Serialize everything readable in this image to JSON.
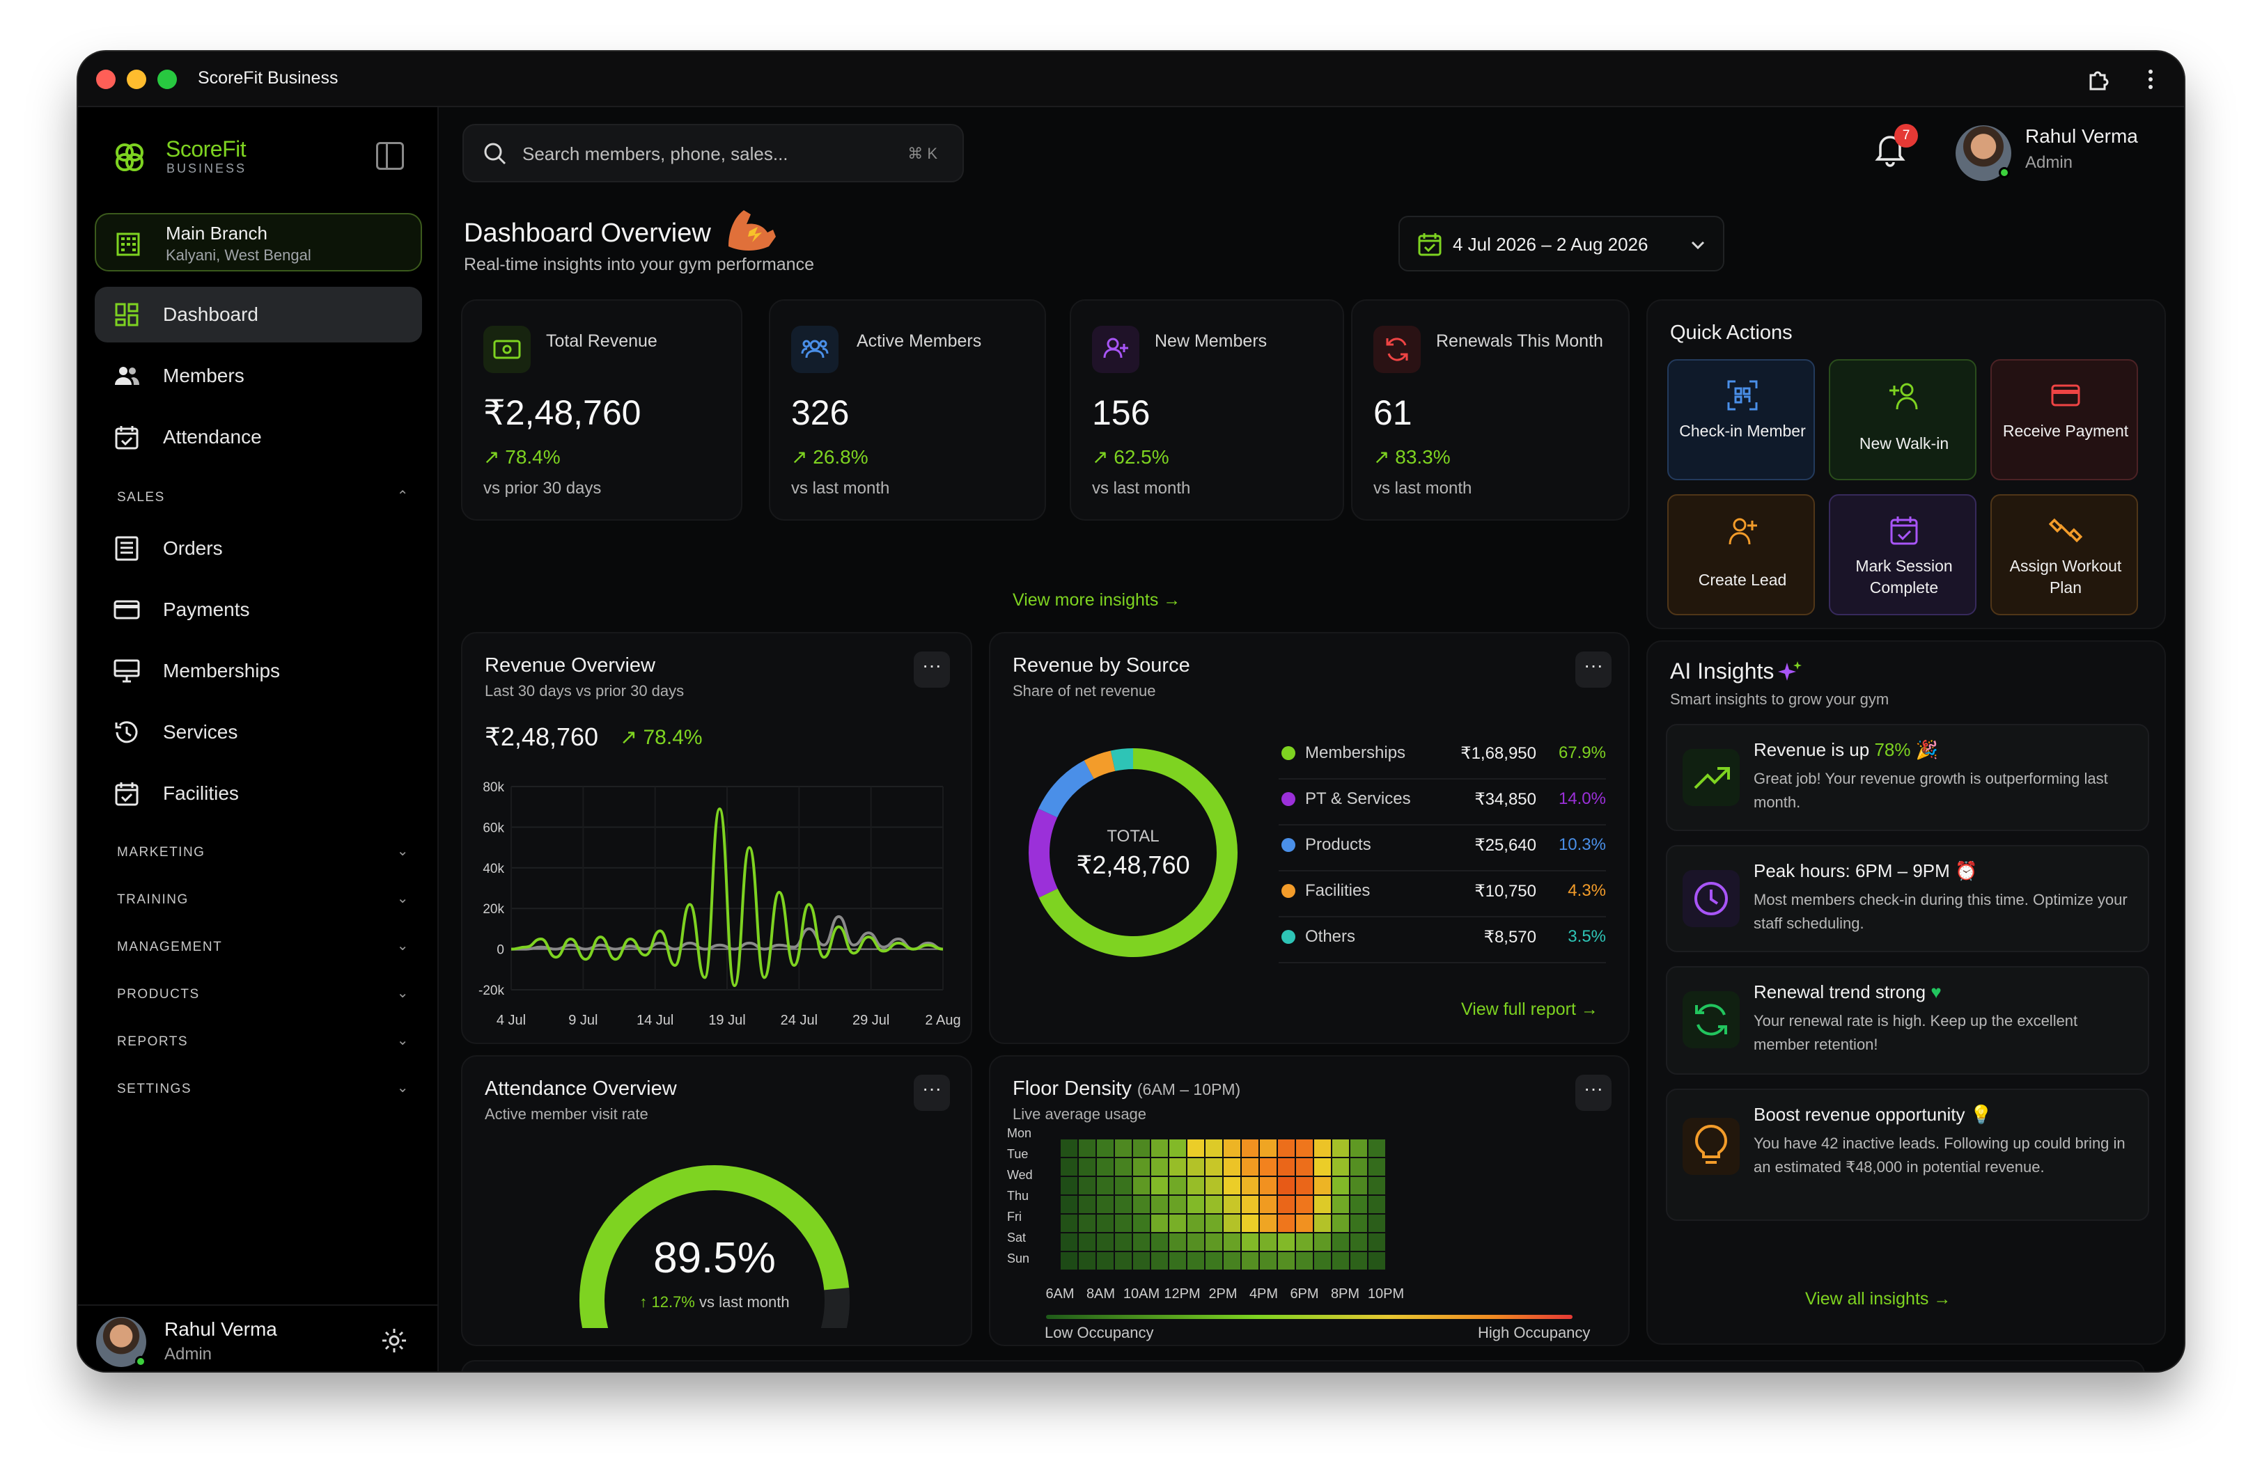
{
  "window": {
    "title": "ScoreFit Business"
  },
  "brand": {
    "name": "ScoreFit",
    "sub": "BUSINESS"
  },
  "branch": {
    "name": "Main Branch",
    "location": "Kalyani, West Bengal"
  },
  "nav": {
    "main": [
      {
        "label": "Dashboard"
      },
      {
        "label": "Members"
      },
      {
        "label": "Attendance"
      }
    ],
    "sales_header": "SALES",
    "sales": [
      {
        "label": "Orders"
      },
      {
        "label": "Payments"
      },
      {
        "label": "Memberships"
      },
      {
        "label": "Services"
      },
      {
        "label": "Facilities"
      }
    ],
    "sections": [
      "MARKETING",
      "TRAINING",
      "MANAGEMENT",
      "PRODUCTS",
      "REPORTS",
      "SETTINGS"
    ]
  },
  "user": {
    "name": "Rahul Verma",
    "role": "Admin"
  },
  "search": {
    "placeholder": "Search members, phone, sales...",
    "shortcut": "⌘ K"
  },
  "notifications": {
    "count": "7"
  },
  "page": {
    "title": "Dashboard Overview",
    "subtitle": "Real-time insights into your gym performance",
    "date_range": "4 Jul 2026 – 2 Aug 2026"
  },
  "stats": [
    {
      "label": "Total Revenue",
      "value": "₹2,48,760",
      "change": "78.4%",
      "compare": "vs prior 30 days"
    },
    {
      "label": "Active Members",
      "value": "326",
      "change": "26.8%",
      "compare": "vs last month"
    },
    {
      "label": "New Members",
      "value": "156",
      "change": "62.5%",
      "compare": "vs last month"
    },
    {
      "label": "Renewals This Month",
      "value": "61",
      "change": "83.3%",
      "compare": "vs last month"
    }
  ],
  "view_more_insights": "View more insights →",
  "revenue_overview": {
    "title": "Revenue Overview",
    "subtitle": "Last 30 days vs prior 30 days",
    "total": "₹2,48,760",
    "change": "78.4%"
  },
  "revenue_by_source": {
    "title": "Revenue by Source",
    "subtitle": "Share of net revenue",
    "total_label": "TOTAL",
    "total": "₹2,48,760",
    "view_full": "View full report →"
  },
  "attendance": {
    "title": "Attendance Overview",
    "subtitle": "Active member visit rate",
    "value_text": "89.5%",
    "value": 89.5,
    "change": "↑ 12.7%",
    "compare": "vs last month"
  },
  "floor_density": {
    "title": "Floor Density",
    "title_note": "(6AM – 10PM)",
    "subtitle": "Live average usage",
    "low": "Low Occupancy",
    "high": "High Occupancy"
  },
  "quick_actions": {
    "title": "Quick Actions",
    "items": [
      {
        "label": "Check-in Member",
        "icon": "qr-scan-icon",
        "color": "#4a8fe8"
      },
      {
        "label": "New Walk-in",
        "icon": "user-plus-icon",
        "color": "#7ed321"
      },
      {
        "label": "Receive Payment",
        "icon": "credit-card-icon",
        "color": "#ef4444"
      },
      {
        "label": "Create Lead",
        "icon": "user-add-icon",
        "color": "#f39c2a"
      },
      {
        "label": "Mark Session Complete",
        "icon": "calendar-check-icon",
        "color": "#a855f7"
      },
      {
        "label": "Assign Workout Plan",
        "icon": "dumbbell-icon",
        "color": "#f39c2a"
      }
    ]
  },
  "ai_insights": {
    "title": "AI Insights",
    "subtitle": "Smart insights to grow your gym",
    "items": [
      {
        "title": "Revenue is up",
        "highlight": "78%",
        "desc": "Great job! Your revenue growth is outperforming last month.",
        "color": "#7ed321",
        "icon": "trend-up-icon"
      },
      {
        "title": "Peak hours: 6PM – 9PM",
        "desc": "Most members check-in during this time. Optimize your staff scheduling.",
        "color": "#a855f7",
        "icon": "clock-icon"
      },
      {
        "title": "Renewal trend strong",
        "desc": "Your renewal rate is high. Keep up the excellent member retention!",
        "color": "#22c55e",
        "icon": "refresh-icon"
      },
      {
        "title": "Boost revenue opportunity",
        "desc": "You have 42 inactive leads. Following up could bring in an estimated ₹48,000 in potential revenue.",
        "color": "#f39c2a",
        "icon": "lightbulb-icon"
      }
    ],
    "view_all": "View all insights →"
  },
  "colors": {
    "accent": "#7ed321",
    "purple": "#9b30d9",
    "blue": "#4a8fe8",
    "orange": "#f39c2a",
    "teal": "#2ec4b6",
    "bg": "#08090a"
  },
  "chart_data": [
    {
      "type": "line",
      "title": "Revenue Overview",
      "x_ticks": [
        "4 Jul",
        "9 Jul",
        "14 Jul",
        "19 Jul",
        "24 Jul",
        "29 Jul",
        "2 Aug"
      ],
      "y_ticks": [
        "80k",
        "60k",
        "40k",
        "20k",
        "0",
        "-20k"
      ],
      "ylim": [
        -20000,
        80000
      ],
      "grid": true,
      "series": [
        {
          "color": "#7ed321",
          "values": [
            0,
            1000,
            5000,
            -4000,
            5000,
            -5000,
            6000,
            -5000,
            5000,
            -3000,
            9000,
            -8000,
            22000,
            -14000,
            69000,
            -18000,
            50000,
            -14000,
            28000,
            -8000,
            22000,
            -4000,
            11000,
            -2000,
            6000,
            -1000,
            3000,
            0,
            2000,
            0
          ]
        },
        {
          "color": "#8a8a8a",
          "values": [
            0,
            0,
            1000,
            0,
            2000,
            0,
            2000,
            0,
            1500,
            0,
            3000,
            0,
            3000,
            0,
            2000,
            0,
            3000,
            0,
            2000,
            1000,
            10000,
            2000,
            16000,
            2000,
            8000,
            1000,
            5000,
            0,
            3000,
            0
          ]
        }
      ]
    },
    {
      "type": "pie",
      "title": "Revenue by Source",
      "slices": [
        {
          "label": "Memberships",
          "value": 168950,
          "value_text": "₹1,68,950",
          "pct": "67.9%",
          "color": "#7ed321"
        },
        {
          "label": "PT & Services",
          "value": 34850,
          "value_text": "₹34,850",
          "pct": "14.0%",
          "color": "#9b30d9"
        },
        {
          "label": "Products",
          "value": 25640,
          "value_text": "₹25,640",
          "pct": "10.3%",
          "color": "#4a8fe8"
        },
        {
          "label": "Facilities",
          "value": 10750,
          "value_text": "₹10,750",
          "pct": "4.3%",
          "color": "#f39c2a"
        },
        {
          "label": "Others",
          "value": 8570,
          "value_text": "₹8,570",
          "pct": "3.5%",
          "color": "#2ec4b6"
        }
      ]
    },
    {
      "type": "heatmap",
      "title": "Floor Density",
      "rows": [
        "Mon",
        "Tue",
        "Wed",
        "Thu",
        "Fri",
        "Sat",
        "Sun"
      ],
      "x_ticks": [
        "6AM",
        "8AM",
        "10AM",
        "12PM",
        "2PM",
        "4PM",
        "6PM",
        "8PM",
        "10PM"
      ],
      "values": [
        [
          0.12,
          0.25,
          0.35,
          0.4,
          0.4,
          0.5,
          0.55,
          0.7,
          0.68,
          0.75,
          0.82,
          0.78,
          0.9,
          0.88,
          0.72,
          0.6,
          0.45,
          0.3
        ],
        [
          0.12,
          0.22,
          0.32,
          0.38,
          0.45,
          0.52,
          0.58,
          0.62,
          0.65,
          0.72,
          0.8,
          0.85,
          0.92,
          0.9,
          0.7,
          0.58,
          0.42,
          0.28
        ],
        [
          0.1,
          0.2,
          0.28,
          0.32,
          0.45,
          0.55,
          0.5,
          0.58,
          0.62,
          0.7,
          0.75,
          0.82,
          0.95,
          0.92,
          0.75,
          0.55,
          0.4,
          0.25
        ],
        [
          0.1,
          0.18,
          0.25,
          0.3,
          0.38,
          0.45,
          0.48,
          0.55,
          0.58,
          0.65,
          0.72,
          0.8,
          0.92,
          0.88,
          0.68,
          0.5,
          0.35,
          0.22
        ],
        [
          0.12,
          0.2,
          0.22,
          0.28,
          0.35,
          0.5,
          0.52,
          0.48,
          0.5,
          0.62,
          0.7,
          0.78,
          0.88,
          0.82,
          0.62,
          0.48,
          0.32,
          0.2
        ],
        [
          0.1,
          0.15,
          0.18,
          0.22,
          0.28,
          0.32,
          0.4,
          0.42,
          0.45,
          0.48,
          0.55,
          0.52,
          0.55,
          0.5,
          0.45,
          0.35,
          0.28,
          0.18
        ],
        [
          0.08,
          0.12,
          0.15,
          0.18,
          0.2,
          0.25,
          0.3,
          0.32,
          0.35,
          0.38,
          0.42,
          0.4,
          0.42,
          0.38,
          0.32,
          0.28,
          0.22,
          0.15
        ]
      ]
    }
  ]
}
